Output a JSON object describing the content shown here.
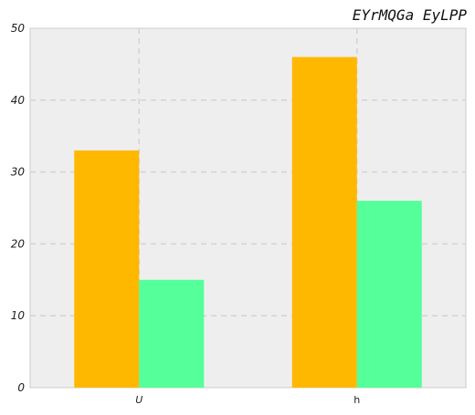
{
  "chart_data": {
    "type": "bar",
    "title": "EYrMQGa EyLPP",
    "xlabel": "",
    "ylabel": "",
    "categories": [
      "U",
      "h"
    ],
    "category_styles": [
      "italic",
      "normal"
    ],
    "series": [
      {
        "values": [
          33,
          46
        ],
        "color": "#ffb800"
      },
      {
        "values": [
          15,
          26
        ],
        "color": "#55ff99"
      }
    ],
    "ylim": [
      0,
      50
    ],
    "yticks": [
      0,
      10,
      20,
      30,
      40,
      50
    ],
    "grid": true,
    "background": "#eeeeee",
    "grid_color": "#d3d3d3",
    "legend": "none"
  }
}
